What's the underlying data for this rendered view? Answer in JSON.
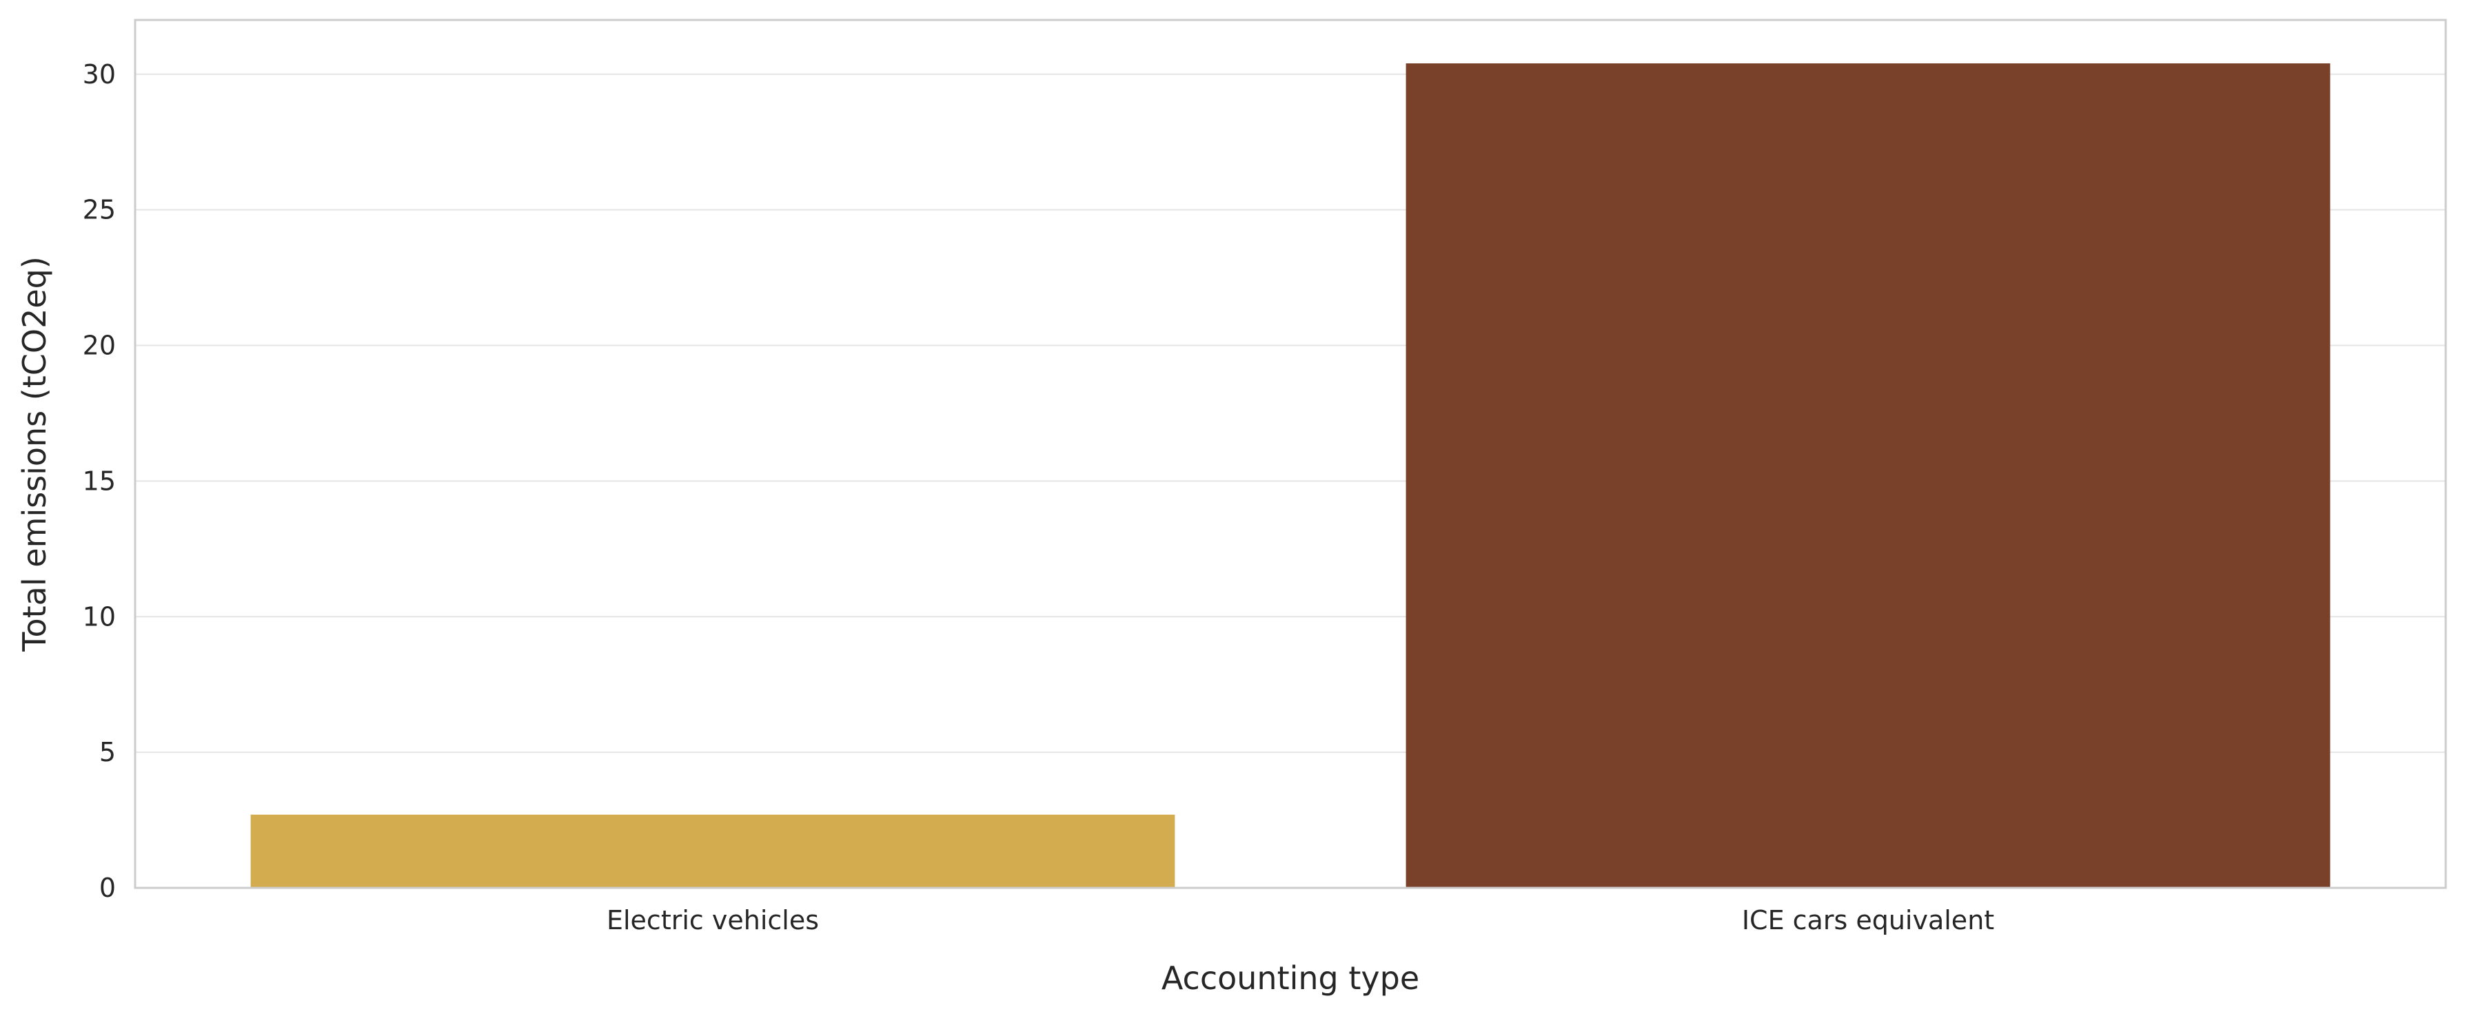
{
  "chart_data": {
    "type": "bar",
    "title": "",
    "xlabel": "Accounting type",
    "ylabel": "Total emissions (tCO2eq)",
    "categories": [
      "Electric vehicles",
      "ICE cars equivalent"
    ],
    "values": [
      2.7,
      30.4
    ],
    "colors": [
      "#D4AC50",
      "#79402A"
    ],
    "ylim": [
      0,
      32
    ],
    "yticks": [
      0,
      5,
      10,
      15,
      20,
      25,
      30
    ],
    "grid": "horizontal",
    "legend": "none"
  }
}
